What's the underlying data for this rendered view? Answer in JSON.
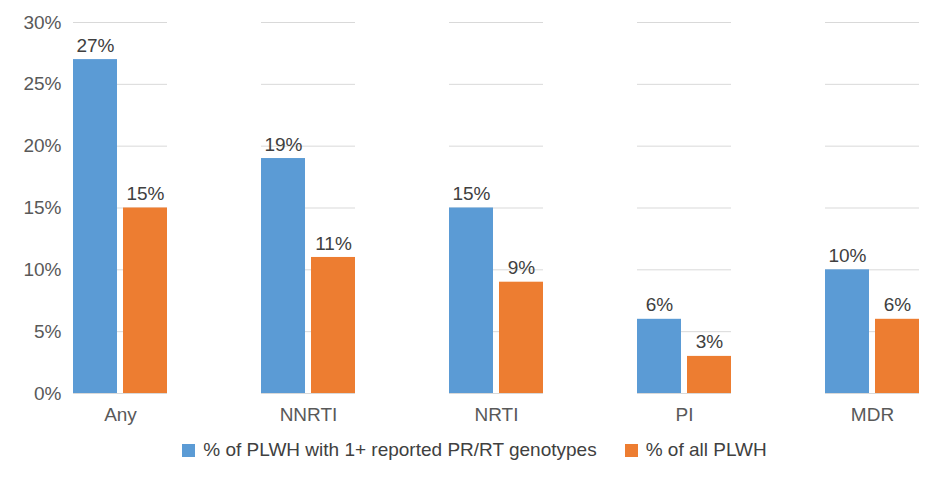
{
  "chart_data": {
    "type": "bar",
    "categories": [
      "Any",
      "NNRTI",
      "NRTI",
      "PI",
      "MDR"
    ],
    "series": [
      {
        "name": "% of PLWH with 1+ reported PR/RT genotypes",
        "color": "#5B9BD5",
        "values": [
          27,
          19,
          15,
          6,
          10
        ],
        "value_labels": [
          "27%",
          "19%",
          "15%",
          "6%",
          "10%"
        ]
      },
      {
        "name": "% of all PLWH",
        "color": "#ED7D31",
        "values": [
          15,
          11,
          9,
          3,
          6
        ],
        "value_labels": [
          "15%",
          "11%",
          "9%",
          "3%",
          "6%"
        ]
      }
    ],
    "ylim": [
      0,
      30
    ],
    "yticks": [
      {
        "value": 0,
        "label": "0%"
      },
      {
        "value": 5,
        "label": "5%"
      },
      {
        "value": 10,
        "label": "10%"
      },
      {
        "value": 15,
        "label": "15%"
      },
      {
        "value": 20,
        "label": "20%"
      },
      {
        "value": 25,
        "label": "25%"
      },
      {
        "value": 30,
        "label": "30%"
      }
    ],
    "grid": true,
    "data_labels": true,
    "legend": "bottom"
  }
}
